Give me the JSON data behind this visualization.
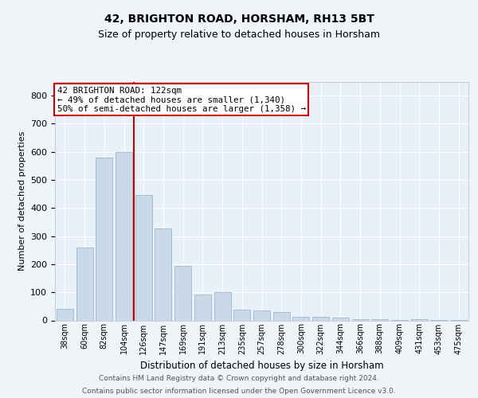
{
  "title1": "42, BRIGHTON ROAD, HORSHAM, RH13 5BT",
  "title2": "Size of property relative to detached houses in Horsham",
  "xlabel": "Distribution of detached houses by size in Horsham",
  "ylabel": "Number of detached properties",
  "categories": [
    "38sqm",
    "60sqm",
    "82sqm",
    "104sqm",
    "126sqm",
    "147sqm",
    "169sqm",
    "191sqm",
    "213sqm",
    "235sqm",
    "257sqm",
    "278sqm",
    "300sqm",
    "322sqm",
    "344sqm",
    "366sqm",
    "388sqm",
    "409sqm",
    "431sqm",
    "453sqm",
    "475sqm"
  ],
  "values": [
    40,
    260,
    580,
    600,
    445,
    328,
    195,
    93,
    102,
    37,
    35,
    31,
    12,
    14,
    9,
    5,
    5,
    1,
    5,
    1,
    1
  ],
  "bar_color": "#c9d9e8",
  "bar_edgecolor": "#a0b8d0",
  "vline_x": 3.5,
  "vline_color": "#cc0000",
  "annotation_line1": "42 BRIGHTON ROAD: 122sqm",
  "annotation_line2": "← 49% of detached houses are smaller (1,340)",
  "annotation_line3": "50% of semi-detached houses are larger (1,358) →",
  "annotation_box_color": "#cc0000",
  "background_color": "#f0f4f8",
  "plot_bg_color": "#e8f0f8",
  "footer1": "Contains HM Land Registry data © Crown copyright and database right 2024.",
  "footer2": "Contains public sector information licensed under the Open Government Licence v3.0.",
  "ylim": [
    0,
    850
  ],
  "yticks": [
    0,
    100,
    200,
    300,
    400,
    500,
    600,
    700,
    800
  ]
}
